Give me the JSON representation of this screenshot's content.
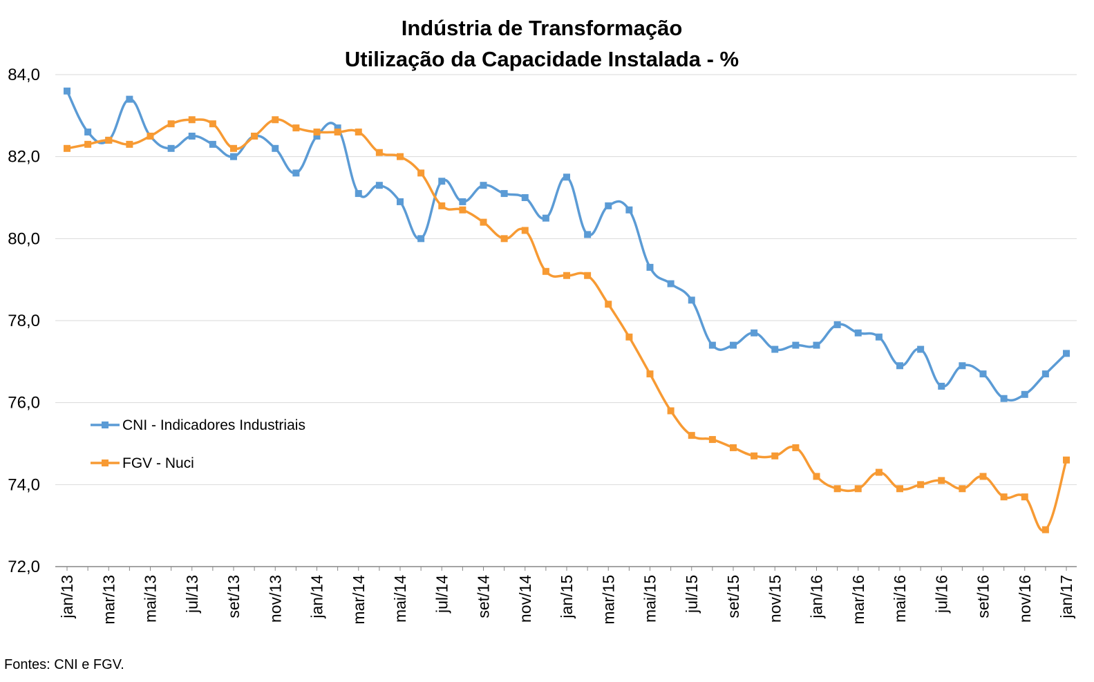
{
  "chart_data": {
    "type": "line",
    "title": "Indústria de Transformação",
    "subtitle": "Utilização da Capacidade Instalada - %",
    "xlabel": "",
    "ylabel": "",
    "ylim": [
      72,
      84
    ],
    "ytick_step": 2,
    "ytick_labels": [
      "72,0",
      "74,0",
      "76,0",
      "78,0",
      "80,0",
      "82,0",
      "84,0"
    ],
    "grid": "horizontal",
    "legend_position": "left",
    "x": [
      "jan/13",
      "fev/13",
      "mar/13",
      "abr/13",
      "mai/13",
      "jun/13",
      "jul/13",
      "ago/13",
      "set/13",
      "out/13",
      "nov/13",
      "dez/13",
      "jan/14",
      "fev/14",
      "mar/14",
      "abr/14",
      "mai/14",
      "jun/14",
      "jul/14",
      "ago/14",
      "set/14",
      "out/14",
      "nov/14",
      "dez/14",
      "jan/15",
      "fev/15",
      "mar/15",
      "abr/15",
      "mai/15",
      "jun/15",
      "jul/15",
      "ago/15",
      "set/15",
      "out/15",
      "nov/15",
      "dez/15",
      "jan/16",
      "fev/16",
      "mar/16",
      "abr/16",
      "mai/16",
      "jun/16",
      "jul/16",
      "ago/16",
      "set/16",
      "out/16",
      "nov/16",
      "dez/16",
      "jan/17"
    ],
    "x_tick_labels": [
      "jan/13",
      "mar/13",
      "mai/13",
      "jul/13",
      "set/13",
      "nov/13",
      "jan/14",
      "mar/14",
      "mai/14",
      "jul/14",
      "set/14",
      "nov/14",
      "jan/15",
      "mar/15",
      "mai/15",
      "jul/15",
      "set/15",
      "nov/15",
      "jan/16",
      "mar/16",
      "mai/16",
      "jul/16",
      "set/16",
      "nov/16",
      "jan/17"
    ],
    "series": [
      {
        "name": "CNI - Indicadores Industriais",
        "color": "#5B9BD5",
        "values": [
          83.6,
          82.6,
          82.4,
          83.4,
          82.5,
          82.2,
          82.5,
          82.3,
          82.0,
          82.5,
          82.2,
          81.6,
          82.5,
          82.7,
          81.1,
          81.3,
          80.9,
          80.0,
          81.4,
          80.9,
          81.3,
          81.1,
          81.0,
          80.5,
          81.5,
          80.1,
          80.8,
          80.7,
          79.3,
          78.9,
          78.5,
          77.4,
          77.4,
          77.7,
          77.3,
          77.4,
          77.4,
          77.9,
          77.7,
          77.6,
          76.9,
          77.3,
          76.4,
          76.9,
          76.7,
          76.1,
          76.2,
          76.7,
          77.2
        ]
      },
      {
        "name": "FGV - Nuci",
        "color": "#F79A33",
        "values": [
          82.2,
          82.3,
          82.4,
          82.3,
          82.5,
          82.8,
          82.9,
          82.8,
          82.2,
          82.5,
          82.9,
          82.7,
          82.6,
          82.6,
          82.6,
          82.1,
          82.0,
          81.6,
          80.8,
          80.7,
          80.4,
          80.0,
          80.2,
          79.2,
          79.1,
          79.1,
          78.4,
          77.6,
          76.7,
          75.8,
          75.2,
          75.1,
          74.9,
          74.7,
          74.7,
          74.9,
          74.2,
          73.9,
          73.9,
          74.3,
          73.9,
          74.0,
          74.1,
          73.9,
          74.2,
          73.7,
          73.7,
          72.9,
          74.6
        ]
      }
    ],
    "source_note": "Fontes: CNI e FGV."
  }
}
